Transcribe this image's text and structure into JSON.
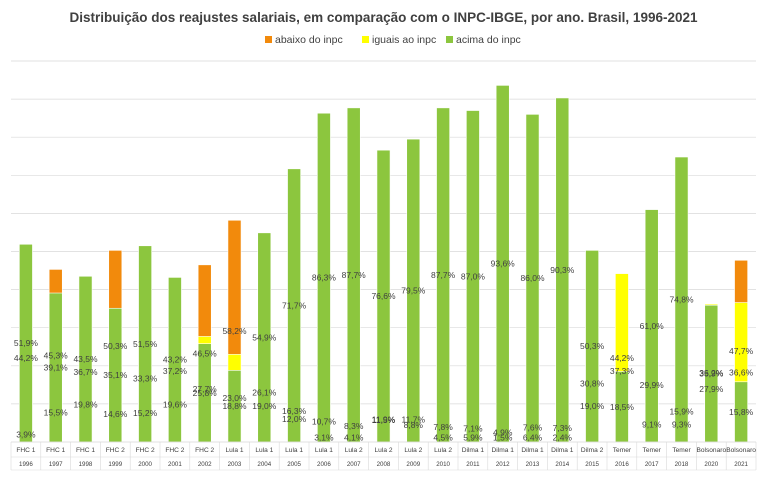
{
  "chart_data": {
    "type": "bar",
    "stacked": true,
    "title": "Distribuição dos reajustes salariais, em comparação com o INPC-IBGE, por ano. Brasil, 1996-2021",
    "legend_position": "top",
    "grid": true,
    "ylim": [
      0,
      100
    ],
    "categories": [
      {
        "gov": "FHC 1",
        "year": "1996"
      },
      {
        "gov": "FHC 1",
        "year": "1997"
      },
      {
        "gov": "FHC 1",
        "year": "1998"
      },
      {
        "gov": "FHC 2",
        "year": "1999"
      },
      {
        "gov": "FHC 2",
        "year": "2000"
      },
      {
        "gov": "FHC 2",
        "year": "2001"
      },
      {
        "gov": "FHC 2",
        "year": "2002"
      },
      {
        "gov": "Lula 1",
        "year": "2003"
      },
      {
        "gov": "Lula 1",
        "year": "2004"
      },
      {
        "gov": "Lula 1",
        "year": "2005"
      },
      {
        "gov": "Lula 1",
        "year": "2006"
      },
      {
        "gov": "Lula 2",
        "year": "2007"
      },
      {
        "gov": "Lula 2",
        "year": "2008"
      },
      {
        "gov": "Lula 2",
        "year": "2009"
      },
      {
        "gov": "Lula 2",
        "year": "2010"
      },
      {
        "gov": "Dilma 1",
        "year": "2011"
      },
      {
        "gov": "Dilma 1",
        "year": "2012"
      },
      {
        "gov": "Dilma 1",
        "year": "2013"
      },
      {
        "gov": "Dilma 1",
        "year": "2014"
      },
      {
        "gov": "Dilma 2",
        "year": "2015"
      },
      {
        "gov": "Temer",
        "year": "2016"
      },
      {
        "gov": "Temer",
        "year": "2017"
      },
      {
        "gov": "Temer",
        "year": "2018"
      },
      {
        "gov": "Bolsonaro",
        "year": "2020"
      },
      {
        "gov": "Bolsonaro",
        "year": "2021"
      }
    ],
    "series": [
      {
        "name": "abaixo do inpc",
        "color": "#f28a0c",
        "values": [
          44.2,
          45.3,
          36.7,
          50.3,
          33.3,
          37.2,
          46.5,
          58.2,
          19.0,
          12.0,
          3.1,
          4.1,
          11.5,
          8.8,
          4.5,
          5.9,
          1.5,
          6.4,
          2.4,
          19.0,
          37.3,
          9.1,
          9.3,
          27.9,
          47.7
        ],
        "labels": [
          "44,2%",
          "45,3%",
          "36,7%",
          "50,3%",
          "33,3%",
          "37,2%",
          "46,5%",
          "58,2%",
          "19,0%",
          "12,0%",
          "3,1%",
          "4,1%",
          "11,5%",
          "8,8%",
          "4,5%",
          "5,9%",
          "1,5%",
          "6,4%",
          "2,4%",
          "19,0%",
          "37,3%",
          "9,1%",
          "9,3%",
          "27,9%",
          "47,7%"
        ]
      },
      {
        "name": "iguais ao inpc",
        "color": "#ffff00",
        "values": [
          3.9,
          15.5,
          19.8,
          14.6,
          15.2,
          19.6,
          27.7,
          23.0,
          26.1,
          16.3,
          10.7,
          8.3,
          11.9,
          11.7,
          7.8,
          7.1,
          4.9,
          7.6,
          7.3,
          30.8,
          44.2,
          29.9,
          15.9,
          36.2,
          36.6
        ],
        "labels": [
          "3,9%",
          "15,5%",
          "19,8%",
          "14,6%",
          "15,2%",
          "19,6%",
          "27,7%",
          "23,0%",
          "26,1%",
          "16,3%",
          "10,7%",
          "8,3%",
          "11,9%",
          "11,7%",
          "7,8%",
          "7,1%",
          "4,9%",
          "7,6%",
          "7,3%",
          "30,8%",
          "44,2%",
          "29,9%",
          "15,9%",
          "36,2%",
          "36,6%"
        ]
      },
      {
        "name": "acima do inpc",
        "color": "#8cc63e",
        "values": [
          51.9,
          39.1,
          43.5,
          35.1,
          51.5,
          43.2,
          25.8,
          18.8,
          54.9,
          71.7,
          86.3,
          87.7,
          76.6,
          79.5,
          87.7,
          87.0,
          93.6,
          86.0,
          90.3,
          50.3,
          18.5,
          61.0,
          74.8,
          35.9,
          15.8
        ],
        "labels": [
          "51,9%",
          "39,1%",
          "43,5%",
          "35,1%",
          "51,5%",
          "43,2%",
          "25,8%",
          "18,8%",
          "54,9%",
          "71,7%",
          "86,3%",
          "87,7%",
          "76,6%",
          "79,5%",
          "87,7%",
          "87,0%",
          "93,6%",
          "86,0%",
          "90,3%",
          "50,3%",
          "18,5%",
          "61,0%",
          "74,8%",
          "35,9%",
          "15,8%"
        ]
      }
    ],
    "colors": {
      "grid": "#d9d9d9",
      "text": "#404040",
      "bar_edge": "#ffffff"
    }
  }
}
